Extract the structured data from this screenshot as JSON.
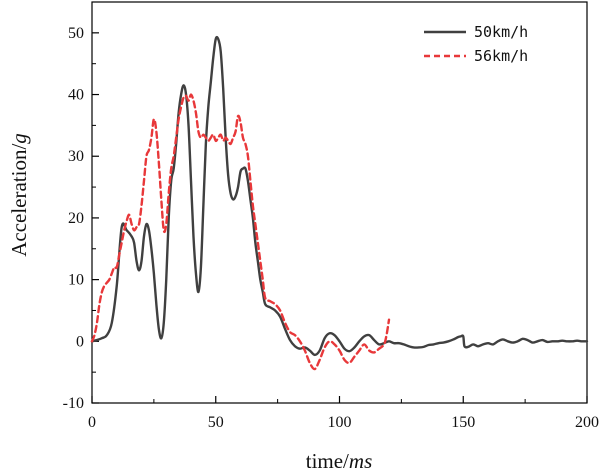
{
  "chart_data": {
    "type": "line",
    "title": "",
    "xlabel": {
      "main": "time/",
      "unit": "ms"
    },
    "ylabel": {
      "main": "Acceleration/",
      "unit": "g"
    },
    "xlim": [
      0,
      200
    ],
    "ylim": [
      -10,
      55
    ],
    "xticks": [
      0,
      50,
      100,
      150,
      200
    ],
    "yticks": [
      -10,
      0,
      10,
      20,
      30,
      40,
      50
    ],
    "grid": false,
    "legend_position": "top-right",
    "series": [
      {
        "name": "50km/h",
        "color": "#404040",
        "style": "solid",
        "points": [
          [
            0,
            0
          ],
          [
            2,
            0.2
          ],
          [
            4,
            0.5
          ],
          [
            6,
            1.0
          ],
          [
            8,
            3
          ],
          [
            10,
            9
          ],
          [
            12,
            18.5
          ],
          [
            14,
            18
          ],
          [
            16,
            17
          ],
          [
            17,
            16
          ],
          [
            18,
            13
          ],
          [
            19,
            11.5
          ],
          [
            20,
            13
          ],
          [
            21,
            17
          ],
          [
            22,
            19
          ],
          [
            23,
            18
          ],
          [
            24,
            15
          ],
          [
            25,
            11
          ],
          [
            26,
            6
          ],
          [
            27,
            2
          ],
          [
            28,
            0.5
          ],
          [
            29,
            3
          ],
          [
            30,
            10
          ],
          [
            31,
            20
          ],
          [
            32,
            26
          ],
          [
            33,
            28
          ],
          [
            34,
            32
          ],
          [
            35,
            37
          ],
          [
            36,
            40
          ],
          [
            37,
            41.5
          ],
          [
            38,
            40
          ],
          [
            39,
            35
          ],
          [
            40,
            26
          ],
          [
            41,
            17
          ],
          [
            42,
            11
          ],
          [
            43,
            8
          ],
          [
            44,
            12
          ],
          [
            45,
            22
          ],
          [
            46,
            32
          ],
          [
            47,
            38
          ],
          [
            48,
            42
          ],
          [
            49,
            46
          ],
          [
            50,
            49
          ],
          [
            51,
            49
          ],
          [
            52,
            47
          ],
          [
            53,
            41
          ],
          [
            54,
            33
          ],
          [
            55,
            27
          ],
          [
            56,
            24
          ],
          [
            57,
            23
          ],
          [
            58,
            23.5
          ],
          [
            59,
            25
          ],
          [
            60,
            27.5
          ],
          [
            61,
            28
          ],
          [
            62,
            28
          ],
          [
            63,
            26
          ],
          [
            64,
            23
          ],
          [
            65,
            20
          ],
          [
            66,
            16
          ],
          [
            67,
            13
          ],
          [
            68,
            10
          ],
          [
            69,
            8
          ],
          [
            70,
            6
          ],
          [
            72,
            5.5
          ],
          [
            74,
            5
          ],
          [
            76,
            4
          ],
          [
            78,
            2
          ],
          [
            80,
            0.2
          ],
          [
            82,
            -0.8
          ],
          [
            84,
            -1.2
          ],
          [
            86,
            -1.0
          ],
          [
            88,
            -1.5
          ],
          [
            90,
            -2.2
          ],
          [
            92,
            -1.5
          ],
          [
            94,
            0.5
          ],
          [
            96,
            1.3
          ],
          [
            98,
            1.0
          ],
          [
            100,
            0
          ],
          [
            102,
            -1.2
          ],
          [
            104,
            -1.6
          ],
          [
            106,
            -1.0
          ],
          [
            108,
            0
          ],
          [
            110,
            0.8
          ],
          [
            112,
            1.0
          ],
          [
            114,
            0.2
          ],
          [
            116,
            -0.5
          ],
          [
            118,
            -0.3
          ],
          [
            120,
            0
          ],
          [
            122,
            -0.3
          ],
          [
            124,
            -0.3
          ],
          [
            126,
            -0.5
          ],
          [
            128,
            -0.8
          ],
          [
            130,
            -1.0
          ],
          [
            132,
            -1.0
          ],
          [
            134,
            -0.9
          ],
          [
            136,
            -0.6
          ],
          [
            138,
            -0.5
          ],
          [
            140,
            -0.3
          ],
          [
            142,
            -0.2
          ],
          [
            144,
            0
          ],
          [
            146,
            0.3
          ],
          [
            148,
            0.7
          ],
          [
            149,
            0.8
          ],
          [
            150,
            0.8
          ],
          [
            150.5,
            -0.8
          ],
          [
            152,
            -0.9
          ],
          [
            154,
            -0.5
          ],
          [
            156,
            -0.8
          ],
          [
            158,
            -0.5
          ],
          [
            160,
            -0.3
          ],
          [
            162,
            -0.5
          ],
          [
            164,
            0
          ],
          [
            166,
            0.3
          ],
          [
            168,
            0
          ],
          [
            170,
            -0.2
          ],
          [
            172,
            0
          ],
          [
            174,
            0.4
          ],
          [
            176,
            0.2
          ],
          [
            178,
            -0.2
          ],
          [
            180,
            0
          ],
          [
            182,
            0.2
          ],
          [
            184,
            -0.1
          ],
          [
            186,
            0
          ],
          [
            188,
            0
          ],
          [
            190,
            0.1
          ],
          [
            192,
            0
          ],
          [
            194,
            0
          ],
          [
            196,
            0.1
          ],
          [
            198,
            0
          ],
          [
            200,
            0
          ]
        ]
      },
      {
        "name": "56km/h",
        "color": "#e8383a",
        "style": "dashed",
        "points": [
          [
            0,
            0
          ],
          [
            1,
            1
          ],
          [
            2,
            3
          ],
          [
            3,
            6
          ],
          [
            4,
            8
          ],
          [
            5,
            9
          ],
          [
            6,
            9.5
          ],
          [
            7,
            10
          ],
          [
            8,
            11
          ],
          [
            9,
            12
          ],
          [
            10,
            12
          ],
          [
            11,
            14
          ],
          [
            12,
            16
          ],
          [
            13,
            18
          ],
          [
            14,
            19.5
          ],
          [
            15,
            20.5
          ],
          [
            16,
            19
          ],
          [
            17,
            18
          ],
          [
            18,
            18.5
          ],
          [
            19,
            19
          ],
          [
            20,
            22
          ],
          [
            21,
            26
          ],
          [
            22,
            30
          ],
          [
            23,
            31
          ],
          [
            24,
            33
          ],
          [
            25,
            36
          ],
          [
            26,
            34
          ],
          [
            27,
            29
          ],
          [
            28,
            23
          ],
          [
            29,
            18
          ],
          [
            30,
            19
          ],
          [
            31,
            24
          ],
          [
            32,
            28
          ],
          [
            33,
            30
          ],
          [
            34,
            33
          ],
          [
            35,
            36
          ],
          [
            36,
            38
          ],
          [
            37,
            39.5
          ],
          [
            38,
            39.8
          ],
          [
            39,
            39
          ],
          [
            40,
            40
          ],
          [
            41,
            39
          ],
          [
            42,
            37
          ],
          [
            43,
            34
          ],
          [
            44,
            33
          ],
          [
            45,
            33.5
          ],
          [
            46,
            33
          ],
          [
            47,
            32.5
          ],
          [
            48,
            33
          ],
          [
            49,
            33.5
          ],
          [
            50,
            32.5
          ],
          [
            51,
            33
          ],
          [
            52,
            33.5
          ],
          [
            53,
            32.5
          ],
          [
            54,
            33
          ],
          [
            55,
            32.5
          ],
          [
            56,
            32
          ],
          [
            57,
            33
          ],
          [
            58,
            34
          ],
          [
            59,
            36.5
          ],
          [
            60,
            35.5
          ],
          [
            61,
            33
          ],
          [
            62,
            32
          ],
          [
            63,
            30
          ],
          [
            64,
            26
          ],
          [
            65,
            22
          ],
          [
            66,
            19
          ],
          [
            67,
            16
          ],
          [
            68,
            13
          ],
          [
            69,
            10
          ],
          [
            70,
            7
          ],
          [
            72,
            6.5
          ],
          [
            74,
            6
          ],
          [
            76,
            5
          ],
          [
            78,
            3
          ],
          [
            80,
            1.5
          ],
          [
            82,
            1
          ],
          [
            84,
            0
          ],
          [
            86,
            -1.5
          ],
          [
            88,
            -3.5
          ],
          [
            90,
            -4.5
          ],
          [
            92,
            -3
          ],
          [
            94,
            -1
          ],
          [
            96,
            0
          ],
          [
            98,
            -0.5
          ],
          [
            100,
            -1.5
          ],
          [
            102,
            -3
          ],
          [
            104,
            -3.5
          ],
          [
            106,
            -2.5
          ],
          [
            108,
            -1.5
          ],
          [
            110,
            -0.5
          ],
          [
            112,
            -1.5
          ],
          [
            114,
            -1.8
          ],
          [
            116,
            -1.2
          ],
          [
            118,
            -0.5
          ],
          [
            119,
            1
          ],
          [
            120,
            3.5
          ]
        ]
      }
    ]
  }
}
